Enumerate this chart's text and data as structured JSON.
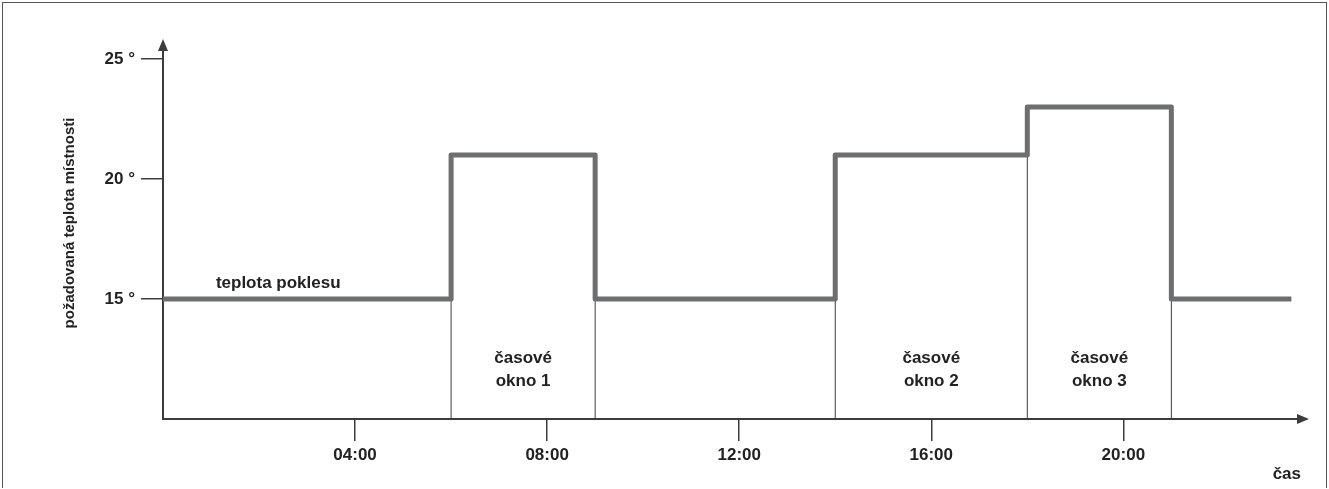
{
  "chart_data": {
    "type": "step",
    "ylabel": "požadovaná teplota místnosti",
    "xlabel": "čas",
    "x": [
      0,
      6,
      9,
      14,
      18,
      21,
      23.5
    ],
    "series": [
      {
        "color": "#6d6e71",
        "values": [
          15,
          21,
          15,
          21,
          23,
          15,
          15
        ]
      }
    ],
    "xlim": [
      0,
      23.7
    ],
    "xticks": [
      {
        "value": 4,
        "label": "04:00"
      },
      {
        "value": 8,
        "label": "08:00"
      },
      {
        "value": 12,
        "label": "12:00"
      },
      {
        "value": 16,
        "label": "16:00"
      },
      {
        "value": 20,
        "label": "20:00"
      }
    ],
    "ylim": [
      10,
      25.5
    ],
    "yticks": [
      {
        "value": 15,
        "label": "15 °"
      },
      {
        "value": 20,
        "label": "20 °"
      },
      {
        "value": 25,
        "label": "25 °"
      }
    ],
    "ref_lines": [
      {
        "axis": "x",
        "value": 6,
        "color": "#3c3c3c"
      },
      {
        "axis": "x",
        "value": 9,
        "color": "#3c3c3c"
      },
      {
        "axis": "x",
        "value": 14,
        "color": "#3c3c3c"
      },
      {
        "axis": "x",
        "value": 18,
        "color": "#3c3c3c"
      },
      {
        "axis": "x",
        "value": 21,
        "color": "#3c3c3c"
      }
    ],
    "annotations": [
      {
        "text": "teplota poklesu",
        "x": 2.4,
        "y": 15
      },
      "časové okno 1",
      "časové okno 2",
      "časové okno 3"
    ],
    "grid": false,
    "legend": false
  }
}
